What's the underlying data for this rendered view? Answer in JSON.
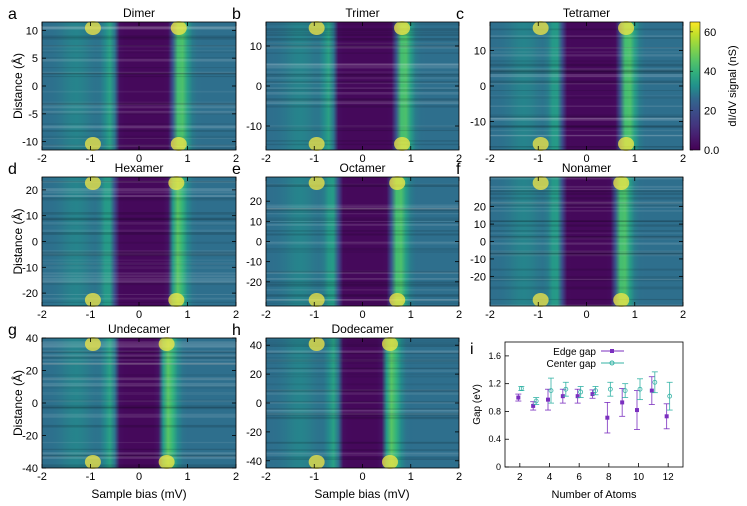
{
  "figure": {
    "colorbar": {
      "label": "dI/dV signal (nS)",
      "ticks": [
        "60",
        "40",
        "20",
        "0.0"
      ],
      "range": [
        0,
        65
      ]
    },
    "xlabel": "Sample bias (mV)",
    "ylabel": "Distance (Å)"
  },
  "chart_data": [
    {
      "type": "heatmap",
      "panel_letter": "a",
      "title": "Dimer",
      "xlim": [
        -2,
        2
      ],
      "ylim": [
        -11.5,
        11.5
      ],
      "x_ticks": [
        "-2",
        "-1",
        "0",
        "1",
        "2"
      ],
      "y_ticks": [
        10,
        5,
        0,
        -5,
        -10
      ],
      "gap_edges_mV": [
        -0.45,
        0.7
      ],
      "end_peaks": true
    },
    {
      "type": "heatmap",
      "panel_letter": "b",
      "title": "Trimer",
      "xlim": [
        -2,
        2
      ],
      "ylim": [
        -16,
        16
      ],
      "x_ticks": [
        "-2",
        "-1",
        "0",
        "1",
        "2"
      ],
      "y_ticks": [
        10,
        0,
        -10
      ],
      "gap_edges_mV": [
        -0.55,
        0.7
      ],
      "end_peaks": true
    },
    {
      "type": "heatmap",
      "panel_letter": "c",
      "title": "Tetramer",
      "xlim": [
        -2,
        2
      ],
      "ylim": [
        -18,
        18
      ],
      "x_ticks": [
        "-2",
        "-1",
        "0",
        "1",
        "2"
      ],
      "y_ticks": [
        10,
        0,
        -10
      ],
      "gap_edges_mV": [
        -0.5,
        0.7
      ],
      "end_peaks": true
    },
    {
      "type": "heatmap",
      "panel_letter": "d",
      "title": "Hexamer",
      "xlim": [
        -2,
        2
      ],
      "ylim": [
        -25,
        25
      ],
      "x_ticks": [
        "-2",
        "-1",
        "0",
        "1",
        "2"
      ],
      "y_ticks": [
        20,
        10,
        0,
        -10,
        -20
      ],
      "gap_edges_mV": [
        -0.5,
        0.65
      ],
      "end_peaks": true
    },
    {
      "type": "heatmap",
      "panel_letter": "e",
      "title": "Octamer",
      "xlim": [
        -2,
        2
      ],
      "ylim": [
        -32,
        32
      ],
      "x_ticks": [
        "-2",
        "-1",
        "0",
        "1",
        "2"
      ],
      "y_ticks": [
        20,
        10,
        0,
        -10,
        -20
      ],
      "gap_edges_mV": [
        -0.5,
        0.6
      ],
      "end_peaks": true
    },
    {
      "type": "heatmap",
      "panel_letter": "f",
      "title": "Nonamer",
      "xlim": [
        -2,
        2
      ],
      "ylim": [
        -37,
        37
      ],
      "x_ticks": [
        "-2",
        "-1",
        "0",
        "1",
        "2"
      ],
      "y_ticks": [
        20,
        10,
        0,
        -10,
        -20
      ],
      "gap_edges_mV": [
        -0.5,
        0.6
      ],
      "end_peaks": true
    },
    {
      "type": "heatmap",
      "panel_letter": "g",
      "title": "Undecamer",
      "xlim": [
        -2,
        2
      ],
      "ylim": [
        -40,
        40
      ],
      "x_ticks": [
        "-2",
        "-1",
        "0",
        "1",
        "2"
      ],
      "y_ticks": [
        40,
        20,
        0,
        -20,
        -40
      ],
      "gap_edges_mV": [
        -0.45,
        0.45
      ],
      "end_peaks": true
    },
    {
      "type": "heatmap",
      "panel_letter": "h",
      "title": "Dodecamer",
      "xlim": [
        -2,
        2
      ],
      "ylim": [
        -45,
        45
      ],
      "x_ticks": [
        "-2",
        "-1",
        "0",
        "1",
        "2"
      ],
      "y_ticks": [
        40,
        20,
        0,
        -20,
        -40
      ],
      "gap_edges_mV": [
        -0.45,
        0.45
      ],
      "end_peaks": true
    },
    {
      "type": "scatter",
      "panel_letter": "i",
      "title": "",
      "xlabel": "Number of Atoms",
      "ylabel": "Gap (eV)",
      "xlim": [
        1,
        13
      ],
      "ylim": [
        0,
        1.8
      ],
      "x_ticks": [
        "2",
        "4",
        "6",
        "8",
        "10",
        "12"
      ],
      "y_ticks": [
        "0",
        "0.4",
        "0.8",
        "1.2",
        "1.6"
      ],
      "legend_position": "top-left",
      "series": [
        {
          "name": "Edge gap",
          "color": "#7b2fbf",
          "x": [
            2,
            3,
            4,
            5,
            6,
            7,
            8,
            9,
            10,
            11,
            12
          ],
          "y": [
            1.0,
            0.88,
            0.97,
            1.02,
            1.02,
            1.05,
            0.71,
            0.93,
            0.82,
            1.1,
            0.73
          ],
          "err": [
            0.05,
            0.06,
            0.15,
            0.1,
            0.1,
            0.06,
            0.22,
            0.2,
            0.28,
            0.2,
            0.18
          ]
        },
        {
          "name": "Center gap",
          "color": "#34b3a6",
          "x": [
            2,
            3,
            4,
            5,
            6,
            7,
            8,
            9,
            10,
            11,
            12
          ],
          "y": [
            1.13,
            0.95,
            1.1,
            1.12,
            1.08,
            1.1,
            1.12,
            1.1,
            1.12,
            1.22,
            1.02
          ],
          "err": [
            0.03,
            0.05,
            0.18,
            0.1,
            0.08,
            0.06,
            0.1,
            0.1,
            0.15,
            0.15,
            0.2
          ]
        }
      ]
    }
  ]
}
